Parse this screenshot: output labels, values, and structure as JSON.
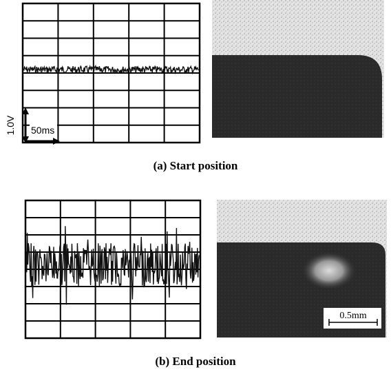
{
  "panels": [
    {
      "caption": "(a) Start position",
      "voltage_scale": "1.0V",
      "time_scale": "50ms"
    },
    {
      "caption": "(b) End position",
      "length_scale": "0.5mm"
    }
  ]
}
